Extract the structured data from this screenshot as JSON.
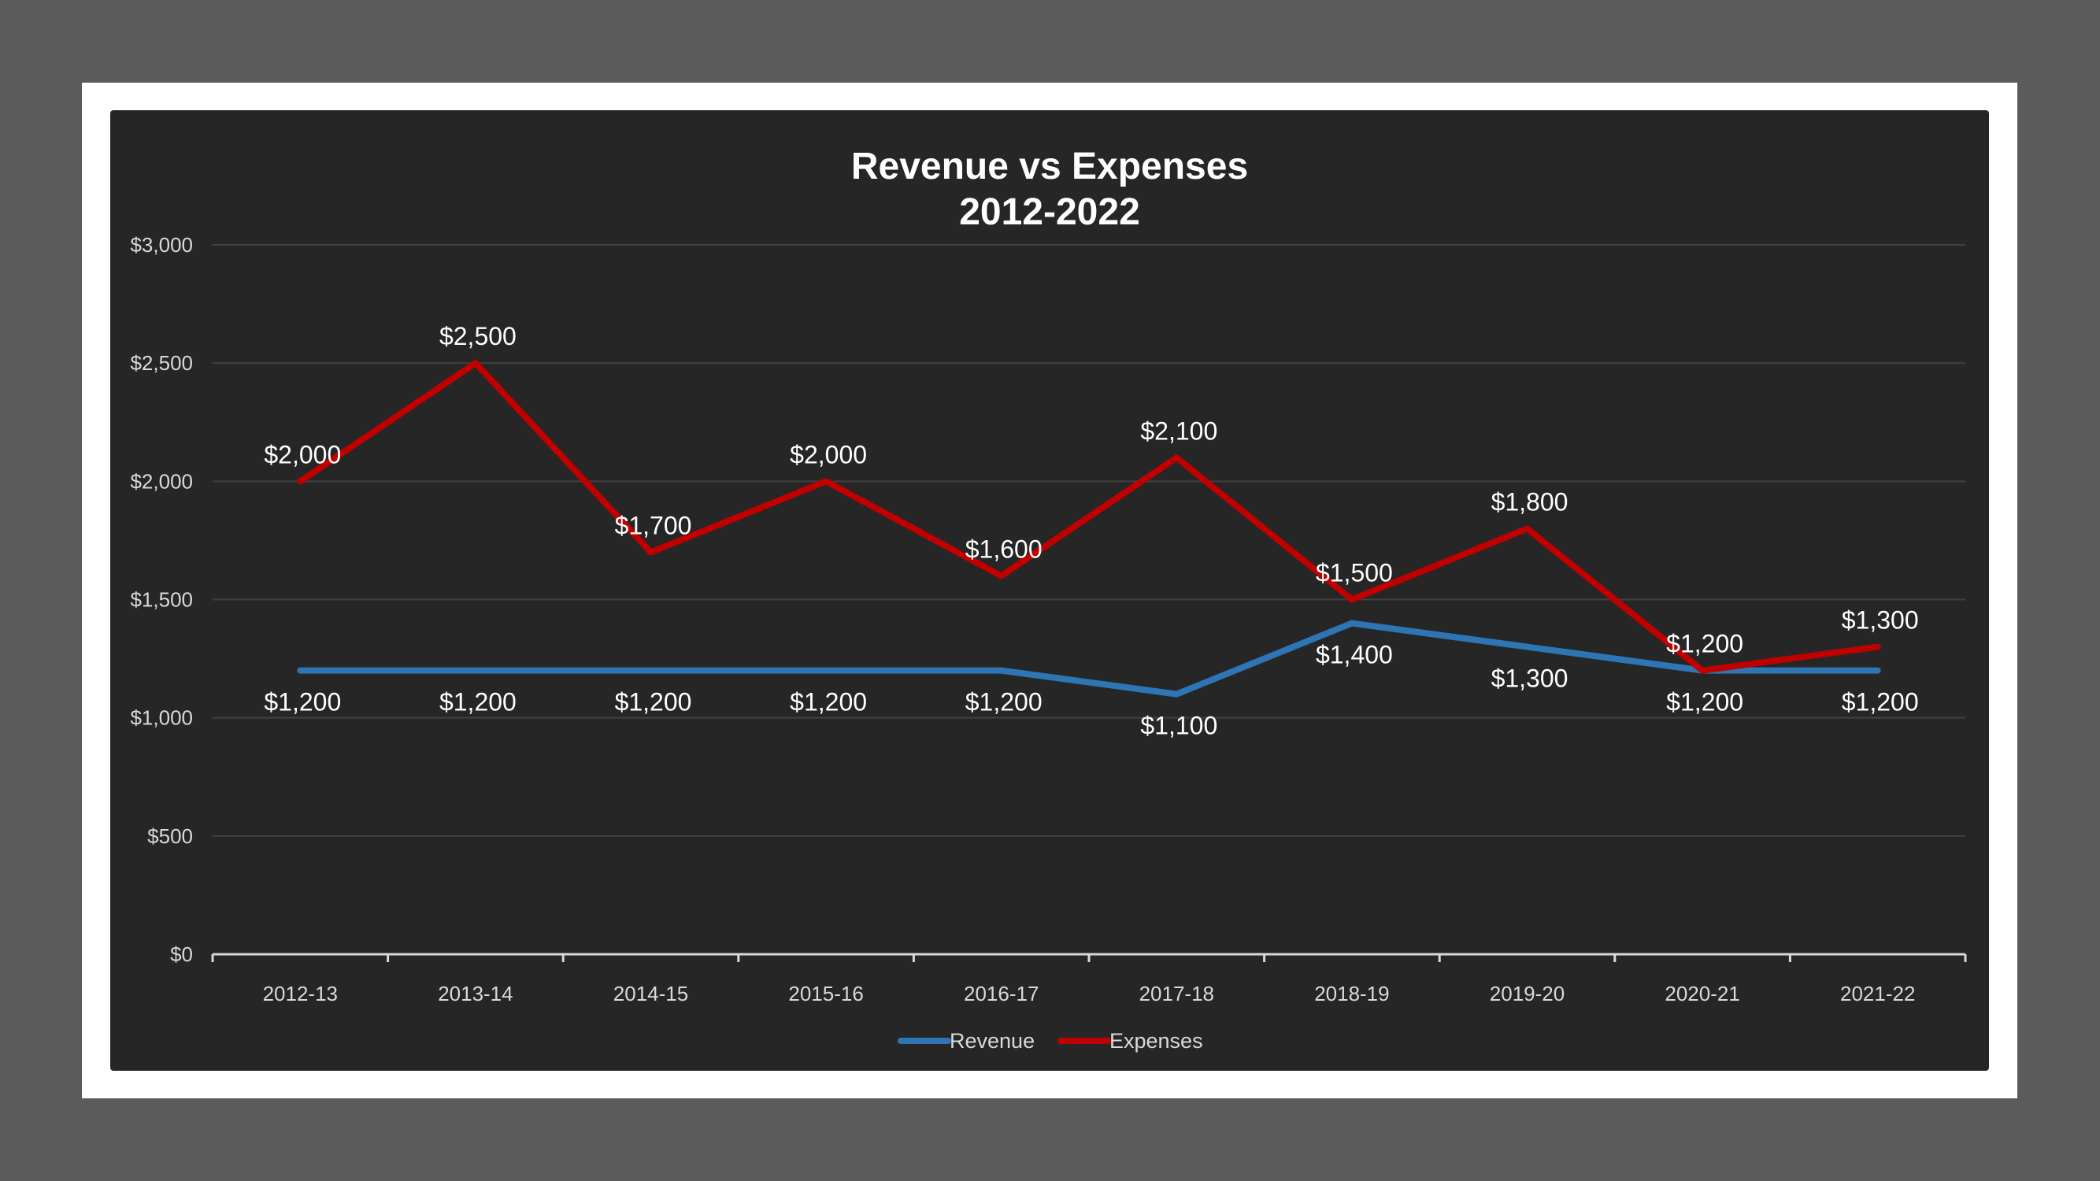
{
  "chart_data": {
    "type": "line",
    "title": "Revenue vs Expenses",
    "subtitle": "2012-2022",
    "categories": [
      "2012-13",
      "2013-14",
      "2014-15",
      "2015-16",
      "2016-17",
      "2017-18",
      "2018-19",
      "2019-20",
      "2020-21",
      "2021-22"
    ],
    "series": [
      {
        "name": "Revenue",
        "color": "#2e75b6",
        "values": [
          1200,
          1200,
          1200,
          1200,
          1200,
          1100,
          1400,
          1300,
          1200,
          1200
        ],
        "label_position": "below"
      },
      {
        "name": "Expenses",
        "color": "#c00000",
        "values": [
          2000,
          2500,
          1700,
          2000,
          1600,
          2100,
          1500,
          1800,
          1200,
          1300
        ],
        "label_position": "above"
      }
    ],
    "y_ticks": [
      "$0",
      "$500",
      "$1,000",
      "$1,500",
      "$2,000",
      "$2,500",
      "$3,000"
    ],
    "y_tick_values": [
      0,
      500,
      1000,
      1500,
      2000,
      2500,
      3000
    ],
    "ylim": [
      0,
      3000
    ],
    "data_labels": {
      "Revenue": [
        "$1,200",
        "$1,200",
        "$1,200",
        "$1,200",
        "$1,200",
        "$1,100",
        "$1,400",
        "$1,300",
        "$1,200",
        "$1,200"
      ],
      "Expenses": [
        "$2,000",
        "$2,500",
        "$1,700",
        "$2,000",
        "$1,600",
        "$2,100",
        "$1,500",
        "$1,800",
        "$1,200",
        "$1,300"
      ]
    },
    "grid": true,
    "legend": "bottom",
    "colors": {
      "background": "#262626",
      "frame": "#ffffff",
      "outer": "#5b5b5b",
      "grid": "#404040",
      "axis": "#d9d9d9"
    }
  }
}
